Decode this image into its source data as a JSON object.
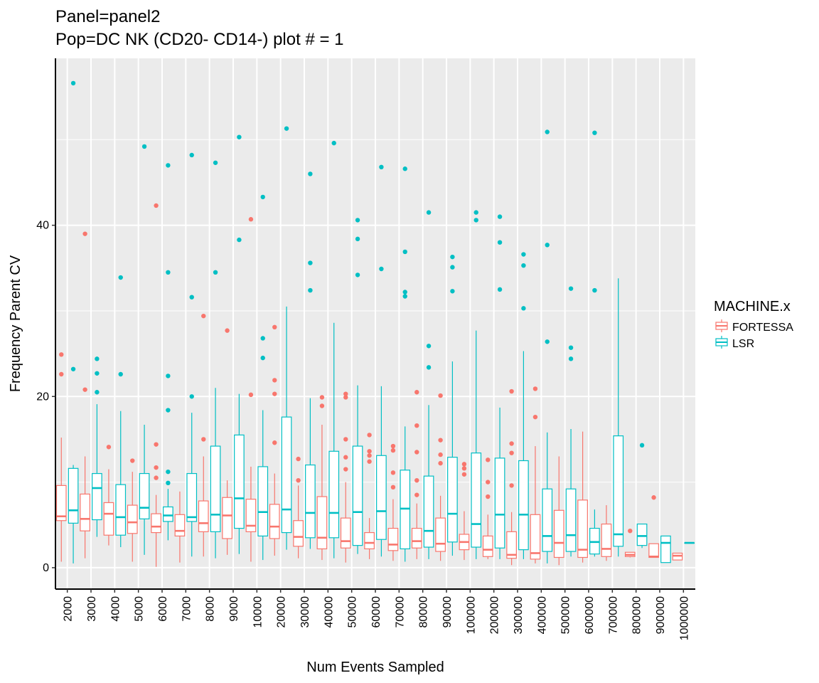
{
  "chart_data": {
    "type": "box",
    "title": "Panel=panel2",
    "subtitle": "Pop=DC NK (CD20- CD14-) plot # = 1",
    "xlabel": "Num Events Sampled",
    "ylabel": "Frequency Parent CV",
    "ylim": [
      -2.5,
      59.5
    ],
    "yticks": [
      0,
      20,
      40
    ],
    "grid": true,
    "legend_title": "MACHINE.x",
    "legend_position": "right",
    "categories": [
      "2000",
      "3000",
      "4000",
      "5000",
      "6000",
      "7000",
      "8000",
      "9000",
      "10000",
      "20000",
      "30000",
      "40000",
      "50000",
      "60000",
      "70000",
      "80000",
      "90000",
      "100000",
      "200000",
      "300000",
      "400000",
      "500000",
      "600000",
      "700000",
      "800000",
      "900000",
      "1000000"
    ],
    "series": [
      {
        "name": "FORTESSA",
        "color": "#F8766D",
        "boxes": [
          {
            "min": 0.7,
            "q1": 5.5,
            "median": 6.0,
            "q3": 9.6,
            "max": 15.2,
            "outliers": [
              22.6,
              24.9
            ]
          },
          {
            "min": 1.1,
            "q1": 4.3,
            "median": 5.7,
            "q3": 8.6,
            "max": 13.0,
            "outliers": [
              20.8,
              39.0
            ]
          },
          {
            "min": 2.6,
            "q1": 3.8,
            "median": 6.3,
            "q3": 7.6,
            "max": 11.5,
            "outliers": [
              14.1
            ]
          },
          {
            "min": 0.7,
            "q1": 4.0,
            "median": 5.3,
            "q3": 7.3,
            "max": 11.2,
            "outliers": [
              12.5
            ]
          },
          {
            "min": 0.1,
            "q1": 4.1,
            "median": 4.8,
            "q3": 6.3,
            "max": 8.5,
            "outliers": [
              10.5,
              11.7,
              14.4,
              42.3
            ]
          },
          {
            "min": 0.6,
            "q1": 3.7,
            "median": 4.3,
            "q3": 6.2,
            "max": 8.9,
            "outliers": []
          },
          {
            "min": 1.3,
            "q1": 4.2,
            "median": 5.2,
            "q3": 7.8,
            "max": 13.0,
            "outliers": [
              15.0,
              29.4
            ]
          },
          {
            "min": 1.5,
            "q1": 3.4,
            "median": 6.1,
            "q3": 8.2,
            "max": 10.2,
            "outliers": [
              27.7
            ]
          },
          {
            "min": 0.7,
            "q1": 4.2,
            "median": 4.9,
            "q3": 8.0,
            "max": 11.8,
            "outliers": [
              20.2,
              40.7
            ]
          },
          {
            "min": 1.4,
            "q1": 3.4,
            "median": 4.8,
            "q3": 7.4,
            "max": 11.0,
            "outliers": [
              14.6,
              20.3,
              21.9,
              28.1
            ]
          },
          {
            "min": 1.1,
            "q1": 2.5,
            "median": 3.6,
            "q3": 5.5,
            "max": 9.6,
            "outliers": [
              10.2,
              12.7
            ]
          },
          {
            "min": 0.9,
            "q1": 2.2,
            "median": 3.5,
            "q3": 8.3,
            "max": 16.7,
            "outliers": [
              18.9,
              19.9
            ]
          },
          {
            "min": 0.6,
            "q1": 2.3,
            "median": 3.1,
            "q3": 5.8,
            "max": 10.0,
            "outliers": [
              11.5,
              12.9,
              15.0,
              19.9,
              20.3
            ]
          },
          {
            "min": 1.0,
            "q1": 2.2,
            "median": 2.9,
            "q3": 4.1,
            "max": 5.8,
            "outliers": [
              12.4,
              13.1,
              13.6,
              15.5
            ]
          },
          {
            "min": 0.8,
            "q1": 2.0,
            "median": 2.7,
            "q3": 4.6,
            "max": 8.0,
            "outliers": [
              9.4,
              11.1,
              13.7,
              14.2
            ]
          },
          {
            "min": 1.0,
            "q1": 2.3,
            "median": 3.1,
            "q3": 4.6,
            "max": 7.5,
            "outliers": [
              8.5,
              10.2,
              13.5,
              16.6,
              20.5
            ]
          },
          {
            "min": 0.8,
            "q1": 1.9,
            "median": 2.8,
            "q3": 5.8,
            "max": 8.4,
            "outliers": [
              12.2,
              13.2,
              14.9,
              20.1
            ]
          },
          {
            "min": 0.9,
            "q1": 2.1,
            "median": 3.0,
            "q3": 3.9,
            "max": 6.6,
            "outliers": [
              10.9,
              11.6,
              12.1
            ]
          },
          {
            "min": 1.0,
            "q1": 1.3,
            "median": 2.1,
            "q3": 3.7,
            "max": 6.2,
            "outliers": [
              8.3,
              10.0,
              12.6
            ]
          },
          {
            "min": 0.3,
            "q1": 1.1,
            "median": 1.5,
            "q3": 4.2,
            "max": 6.5,
            "outliers": [
              9.6,
              13.4,
              14.5,
              20.6
            ]
          },
          {
            "min": 0.5,
            "q1": 1.0,
            "median": 1.7,
            "q3": 6.2,
            "max": 14.2,
            "outliers": [
              17.6,
              20.9
            ]
          },
          {
            "min": 0.3,
            "q1": 1.2,
            "median": 2.9,
            "q3": 6.7,
            "max": 13.0,
            "outliers": []
          },
          {
            "min": 0.6,
            "q1": 1.2,
            "median": 2.1,
            "q3": 7.9,
            "max": 15.9,
            "outliers": []
          },
          {
            "min": 0.8,
            "q1": 1.3,
            "median": 2.2,
            "q3": 5.1,
            "max": 7.3,
            "outliers": []
          },
          {
            "min": 1.2,
            "q1": 1.3,
            "median": 1.5,
            "q3": 1.8,
            "max": 1.8,
            "outliers": [
              4.3
            ]
          },
          {
            "min": 1.2,
            "q1": 1.2,
            "median": 1.3,
            "q3": 2.8,
            "max": 2.8,
            "outliers": [
              8.2
            ]
          },
          {
            "min": 0.9,
            "q1": 0.9,
            "median": 1.4,
            "q3": 1.7,
            "max": 1.7,
            "outliers": []
          }
        ]
      },
      {
        "name": "LSR",
        "color": "#00BFC4",
        "boxes": [
          {
            "min": 0.5,
            "q1": 5.2,
            "median": 6.7,
            "q3": 11.6,
            "max": 12.0,
            "outliers": [
              23.2,
              56.6
            ]
          },
          {
            "min": 3.6,
            "q1": 5.6,
            "median": 9.3,
            "q3": 11.0,
            "max": 19.1,
            "outliers": [
              20.5,
              22.7,
              24.4
            ]
          },
          {
            "min": 2.4,
            "q1": 3.8,
            "median": 5.9,
            "q3": 9.7,
            "max": 18.3,
            "outliers": [
              22.6,
              33.9
            ]
          },
          {
            "min": 1.5,
            "q1": 5.7,
            "median": 7.0,
            "q3": 11.0,
            "max": 16.7,
            "outliers": [
              49.2
            ]
          },
          {
            "min": 3.2,
            "q1": 5.4,
            "median": 6.1,
            "q3": 7.1,
            "max": 9.2,
            "outliers": [
              9.9,
              11.2,
              18.4,
              22.4,
              34.5,
              47.0
            ]
          },
          {
            "min": 1.3,
            "q1": 5.4,
            "median": 5.9,
            "q3": 11.0,
            "max": 18.1,
            "outliers": [
              20.0,
              31.6,
              48.2
            ]
          },
          {
            "min": 1.1,
            "q1": 4.2,
            "median": 6.2,
            "q3": 14.2,
            "max": 21.0,
            "outliers": [
              34.5,
              47.3
            ]
          },
          {
            "min": 1.6,
            "q1": 4.6,
            "median": 8.1,
            "q3": 15.5,
            "max": 20.3,
            "outliers": [
              38.3,
              50.3
            ]
          },
          {
            "min": 0.9,
            "q1": 3.7,
            "median": 6.5,
            "q3": 11.8,
            "max": 18.4,
            "outliers": [
              24.5,
              26.8,
              43.3
            ]
          },
          {
            "min": 2.1,
            "q1": 4.1,
            "median": 6.8,
            "q3": 17.6,
            "max": 30.5,
            "outliers": [
              51.3
            ]
          },
          {
            "min": 2.2,
            "q1": 3.5,
            "median": 6.4,
            "q3": 12.0,
            "max": 19.8,
            "outliers": [
              32.4,
              35.6,
              46.0
            ]
          },
          {
            "min": 1.1,
            "q1": 3.5,
            "median": 6.4,
            "q3": 13.6,
            "max": 28.6,
            "outliers": [
              49.6
            ]
          },
          {
            "min": 1.6,
            "q1": 2.6,
            "median": 6.5,
            "q3": 14.2,
            "max": 21.3,
            "outliers": [
              34.2,
              38.4,
              40.6
            ]
          },
          {
            "min": 1.3,
            "q1": 3.3,
            "median": 6.6,
            "q3": 13.1,
            "max": 21.2,
            "outliers": [
              34.9,
              46.8
            ]
          },
          {
            "min": 0.7,
            "q1": 2.2,
            "median": 6.9,
            "q3": 11.4,
            "max": 16.5,
            "outliers": [
              31.7,
              32.2,
              36.9,
              46.6
            ]
          },
          {
            "min": 1.0,
            "q1": 2.4,
            "median": 4.3,
            "q3": 10.7,
            "max": 19.0,
            "outliers": [
              23.4,
              25.9,
              41.5
            ]
          },
          {
            "min": 1.4,
            "q1": 3.0,
            "median": 6.3,
            "q3": 12.9,
            "max": 24.1,
            "outliers": [
              32.3,
              35.1,
              36.3
            ]
          },
          {
            "min": 1.0,
            "q1": 2.4,
            "median": 5.1,
            "q3": 13.4,
            "max": 27.7,
            "outliers": [
              40.6,
              41.5
            ]
          },
          {
            "min": 1.0,
            "q1": 2.3,
            "median": 6.2,
            "q3": 12.8,
            "max": 18.7,
            "outliers": [
              32.5,
              38.0,
              41.0
            ]
          },
          {
            "min": 1.0,
            "q1": 2.1,
            "median": 6.2,
            "q3": 12.5,
            "max": 25.3,
            "outliers": [
              30.3,
              35.3,
              36.6
            ]
          },
          {
            "min": 0.5,
            "q1": 1.9,
            "median": 3.7,
            "q3": 9.2,
            "max": 15.8,
            "outliers": [
              26.4,
              37.7,
              50.9
            ]
          },
          {
            "min": 1.3,
            "q1": 1.9,
            "median": 3.8,
            "q3": 9.2,
            "max": 16.2,
            "outliers": [
              24.4,
              25.7,
              32.6
            ]
          },
          {
            "min": 1.3,
            "q1": 1.6,
            "median": 3.0,
            "q3": 4.6,
            "max": 6.8,
            "outliers": [
              32.4,
              50.8
            ]
          },
          {
            "min": 1.3,
            "q1": 2.5,
            "median": 3.9,
            "q3": 15.4,
            "max": 33.8,
            "outliers": []
          },
          {
            "min": 2.3,
            "q1": 2.6,
            "median": 3.7,
            "q3": 5.1,
            "max": 5.1,
            "outliers": [
              14.3
            ]
          },
          {
            "min": 0.6,
            "q1": 0.6,
            "median": 2.9,
            "q3": 3.7,
            "max": 3.7,
            "outliers": []
          },
          {
            "min": 2.9,
            "q1": 2.9,
            "median": 2.9,
            "q3": 2.9,
            "max": 2.9,
            "outliers": []
          }
        ]
      }
    ]
  }
}
